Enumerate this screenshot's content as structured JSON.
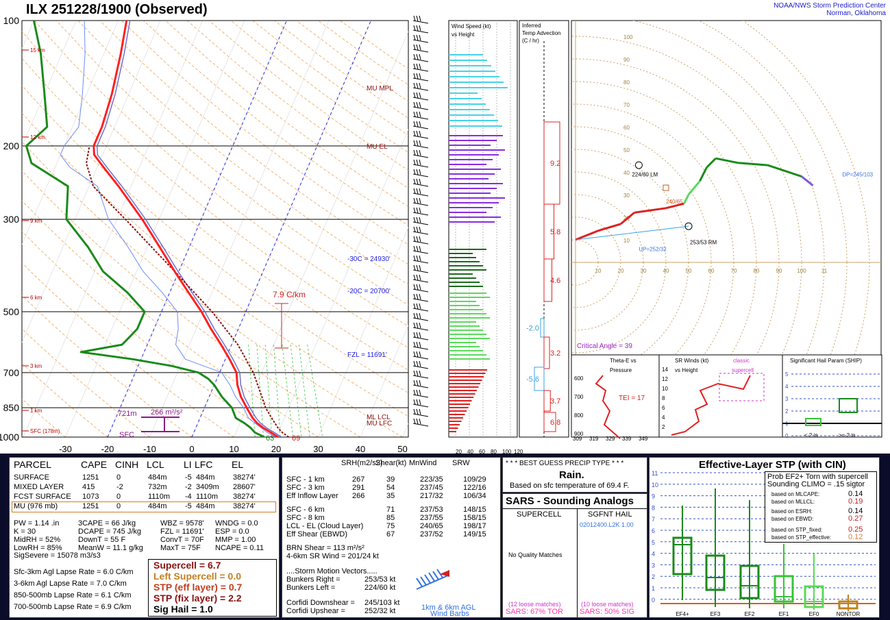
{
  "header": {
    "title": "ILX  251228/1900  (Observed)",
    "org_line1": "NOAA/NWS Storm Prediction Center",
    "org_line2": "Norman, Oklahoma"
  },
  "skewt": {
    "pressure_ticks": [
      "100",
      "200",
      "300",
      "500",
      "700",
      "850",
      "1000"
    ],
    "temp_ticks": [
      "-30",
      "-20",
      "-10",
      "0",
      "10",
      "20",
      "30",
      "40",
      "50"
    ],
    "height_labels": [
      "15 km",
      "12 km",
      "9 km",
      "6 km",
      "3 km",
      "1 km",
      "SFC (178m)"
    ],
    "levels": [
      "MU MPL",
      "MU EL",
      "-30C = 24930'",
      "-20C = 20700'",
      "FZL = 11691'",
      "ML LCL",
      "MU LFC"
    ],
    "lapse_label": "7.9 C/km",
    "srh_label": "266 m²/s²",
    "srh_depth": "721m",
    "sfc_label": "SFC",
    "sfc_temp": "69",
    "sfc_dew": "63"
  },
  "chart_data": {
    "type": "line",
    "title": "ILX  251228/1900  (Observed)",
    "xlabel": "Temperature (C)",
    "ylabel": "Pressure (mb)",
    "xlim": [
      -30,
      50
    ],
    "ylim": [
      1000,
      100
    ],
    "log_y": true,
    "series": [
      {
        "name": "Temperature",
        "points": [
          [
            1000,
            20.5
          ],
          [
            975,
            18.3
          ],
          [
            950,
            16.0
          ],
          [
            925,
            14.0
          ],
          [
            900,
            12.5
          ],
          [
            850,
            10.0
          ],
          [
            800,
            7.5
          ],
          [
            750,
            5.5
          ],
          [
            700,
            4.0
          ],
          [
            650,
            1.0
          ],
          [
            600,
            -2.5
          ],
          [
            550,
            -6.5
          ],
          [
            500,
            -10.5
          ],
          [
            450,
            -15.5
          ],
          [
            400,
            -21.0
          ],
          [
            350,
            -27.0
          ],
          [
            300,
            -34.0
          ],
          [
            250,
            -43.0
          ],
          [
            225,
            -48.5
          ],
          [
            210,
            -52.0
          ],
          [
            200,
            -53.0
          ],
          [
            180,
            -53.0
          ],
          [
            150,
            -54.0
          ],
          [
            120,
            -56.0
          ],
          [
            100,
            -58.0
          ]
        ]
      },
      {
        "name": "Dewpoint",
        "points": [
          [
            1000,
            17.2
          ],
          [
            975,
            14.5
          ],
          [
            950,
            13.0
          ],
          [
            925,
            11.0
          ],
          [
            900,
            8.5
          ],
          [
            850,
            6.5
          ],
          [
            800,
            3.0
          ],
          [
            750,
            0.0
          ],
          [
            725,
            -2.0
          ],
          [
            700,
            -5.0
          ],
          [
            675,
            -12.0
          ],
          [
            650,
            -22.0
          ],
          [
            625,
            -35.0
          ],
          [
            600,
            -26.0
          ],
          [
            575,
            -25.0
          ],
          [
            550,
            -24.0
          ],
          [
            500,
            -24.0
          ],
          [
            450,
            -30.0
          ],
          [
            400,
            -38.0
          ],
          [
            350,
            -44.0
          ],
          [
            300,
            -52.0
          ],
          [
            250,
            -55.0
          ],
          [
            220,
            -66.0
          ],
          [
            200,
            -69.0
          ],
          [
            180,
            -66.0
          ],
          [
            150,
            -70.0
          ],
          [
            120,
            -75.0
          ],
          [
            100,
            -80.0
          ]
        ]
      }
    ]
  },
  "wind_speed_panel": {
    "title_line1": "Wind Speed (kt)",
    "title_line2": "vs Height",
    "ticks": [
      "20",
      "40",
      "60",
      "80",
      "100",
      "120"
    ]
  },
  "advection_panel": {
    "title_line1": "Inferred",
    "title_line2": "Temp Advection",
    "title_line3": "(C / hr)",
    "values": [
      "9.2",
      "5.8",
      "4.6",
      "-2.0",
      "3.2",
      "-5.6",
      "3.7",
      "6.8"
    ]
  },
  "hodograph": {
    "rings": [
      "10",
      "20",
      "30",
      "40",
      "50",
      "60",
      "70",
      "80",
      "90",
      "100"
    ],
    "x_ticks": [
      "10",
      "20",
      "30",
      "40",
      "50",
      "60",
      "70",
      "80",
      "90",
      "100",
      "11"
    ],
    "labels": {
      "lm": "224/60 LM",
      "rm": "253/53 RM",
      "mean": "240/65",
      "up": "UP=252/32",
      "dp": "DP=245/103"
    },
    "critical_angle": "Critical Angle = 39"
  },
  "theta_panel": {
    "title_line1": "Theta-E vs",
    "title_line2": "Pressure",
    "tei": "TEI = 17",
    "y_ticks": [
      "600",
      "700",
      "800",
      "900"
    ],
    "x_ticks": [
      "309",
      "319",
      "329",
      "339",
      "349"
    ]
  },
  "srwind_panel": {
    "title_line1": "SR Winds (kt)",
    "title_line2": "vs Height",
    "tag_line1": "classic",
    "tag_line2": "supercell",
    "y_ticks": [
      "14",
      "12",
      "10",
      "8",
      "6",
      "4",
      "2"
    ]
  },
  "ship_panel": {
    "title": "Significant Hail Param (SHIP)",
    "y_ticks": [
      "5",
      "4",
      "3",
      "2",
      "1",
      "0"
    ],
    "x_labels": [
      "< 2 in",
      ">= 2 in"
    ]
  },
  "parcel": {
    "headers": [
      "PARCEL",
      "CAPE",
      "CINH",
      "LCL",
      "LI",
      "LFC",
      "EL"
    ],
    "rows": [
      [
        "SURFACE",
        "1251",
        "0",
        "484m",
        "-5",
        "484m",
        "38274'"
      ],
      [
        "MIXED LAYER",
        "415",
        "-2",
        "732m",
        "-2",
        "3409m",
        "28607'"
      ],
      [
        "FCST SURFACE",
        "1073",
        "0",
        "1110m",
        "-4",
        "1110m",
        "38274'"
      ],
      [
        "MU   (976 mb)",
        "1251",
        "0",
        "484m",
        "-5",
        "484m",
        "38274'"
      ]
    ],
    "thermo": [
      [
        "PW = 1.14 .in",
        "3CAPE = 66 J/kg",
        "WBZ = 9578'",
        "WNDG = 0.0"
      ],
      [
        "K = 30",
        "DCAPE = 745 J/kg",
        "FZL = 11691'",
        "ESP = 0.0"
      ],
      [
        "MidRH = 52%",
        "DownT = 55 F",
        "ConvT = 70F",
        "MMP = 1.00"
      ],
      [
        "LowRH = 85%",
        "MeanW = 11.1 g/kg",
        "MaxT = 75F",
        "NCAPE = 0.11"
      ]
    ],
    "sigsevere": "SigSevere = 15078 m3/s3",
    "lapse": [
      "Sfc-3km Agl Lapse Rate =  6.0 C/km",
      "3-6km Agl Lapse Rate =    7.0 C/km",
      "850-500mb Lapse Rate =   6.1 C/km",
      "700-500mb Lapse Rate =   6.9 C/km"
    ],
    "indices": [
      "Supercell = 6.7",
      "Left Supercell = 0.0",
      "STP (eff layer) = 0.7",
      "STP (fix layer) = 2.2",
      "Sig Hail = 1.0"
    ]
  },
  "kinematics": {
    "headers": [
      "SRH(m2/s2)",
      "Shear(kt)",
      "MnWind",
      "SRW"
    ],
    "rows": [
      [
        "SFC - 1 km",
        "267",
        "39",
        "223/35",
        "109/29"
      ],
      [
        "SFC - 3 km",
        "291",
        "54",
        "237/45",
        "122/16"
      ],
      [
        "Eff Inflow Layer",
        "266",
        "35",
        "217/32",
        "106/34"
      ],
      [
        "SFC - 6 km",
        "",
        "71",
        "237/53",
        "148/15"
      ],
      [
        "SFC - 8 km",
        "",
        "85",
        "237/55",
        "158/15"
      ],
      [
        "LCL - EL (Cloud Layer)",
        "",
        "75",
        "240/65",
        "198/17"
      ],
      [
        "Eff Shear (EBWD)",
        "",
        "67",
        "237/52",
        "149/15"
      ]
    ],
    "brn_shear": "BRN Shear = 113 m²/s²",
    "sr_wind": "4-6km SR Wind =         201/24 kt",
    "storm_header": "....Storm Motion Vectors.....",
    "motions": [
      [
        "Bunkers Right =",
        "253/53 kt"
      ],
      [
        "Bunkers Left =",
        "224/60 kt"
      ],
      [
        "Corfidi Downshear =",
        "245/103 kt"
      ],
      [
        "Corfidi Upshear =",
        "252/32 kt"
      ]
    ],
    "barb_caption1": "1km & 6km AGL",
    "barb_caption2": "Wind Barbs"
  },
  "precip": {
    "header": "* * * BEST GUESS PRECIP TYPE * * *",
    "type": "Rain.",
    "note": "Based on sfc temperature of 69.4 F."
  },
  "sars": {
    "title": "SARS - Sounding Analogs",
    "col1": "SUPERCELL",
    "col2": "SGFNT HAIL",
    "hail_match": "02012400.L2K  1.00",
    "no_match": "No Quality Matches",
    "loose1": "(12 loose matches)",
    "loose2": "(10 loose matches)",
    "stat1": "SARS:  67% TOR",
    "stat2": "SARS:  50% SIG"
  },
  "stp": {
    "title": "Effective-Layer STP (with CIN)",
    "prob_line1": "Prob EF2+ Torn with supercell",
    "prob_line2": "Sounding CLIMO = .15 sigtor",
    "rows": [
      [
        "based on MLCAPE:",
        "0.14"
      ],
      [
        "based on MLLCL:",
        "0.19"
      ],
      [
        "based on ESRH:",
        "0.14"
      ],
      [
        "based on EBWD:",
        "0.27"
      ],
      [
        "based on STP_fixed:",
        "0.25"
      ],
      [
        "based on STP_effective:",
        "0.12"
      ]
    ],
    "y_ticks": [
      "11",
      "10",
      "9",
      "8",
      "7",
      "6",
      "5",
      "4",
      "3",
      "2",
      "1",
      "0"
    ],
    "categories": [
      "EF4+",
      "EF3",
      "EF2",
      "EF1",
      "EF0",
      "NONTOR"
    ]
  },
  "colors": {
    "temperature": "#ff2020",
    "dewpoint": "#1a8a1a",
    "wetbulb": "#3060ff",
    "parcel": "#8a1010",
    "panel_bg": "#0b0b2a"
  }
}
